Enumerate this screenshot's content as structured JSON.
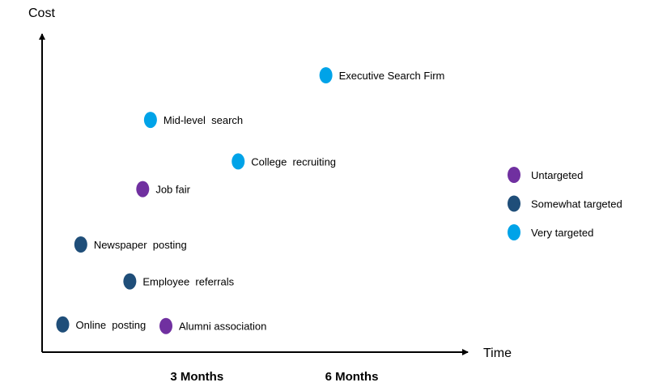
{
  "chart_data": {
    "type": "scatter",
    "title": "",
    "xlabel": "Time",
    "ylabel": "Cost",
    "x_ticks": [
      {
        "label": "3 Months",
        "value": 3
      },
      {
        "label": "6 Months",
        "value": 6
      }
    ],
    "xlim": [
      0,
      8
    ],
    "ylim": [
      0,
      10
    ],
    "grid": false,
    "legend_position": "right",
    "categories": [
      {
        "key": "untargeted",
        "name": "Untargeted",
        "color": "#7030a0"
      },
      {
        "key": "somewhat",
        "name": "Somewhat targeted",
        "color": "#1f4e79"
      },
      {
        "key": "very",
        "name": "Very targeted",
        "color": "#00a3e8"
      }
    ],
    "points": [
      {
        "label": "Executive Search Firm",
        "x": 5.5,
        "y": 9.0,
        "category": "very"
      },
      {
        "label": "Mid-level  search",
        "x": 2.1,
        "y": 7.55,
        "category": "very"
      },
      {
        "label": "College  recruiting",
        "x": 3.8,
        "y": 6.2,
        "category": "very"
      },
      {
        "label": "Job fair",
        "x": 1.95,
        "y": 5.3,
        "category": "untargeted"
      },
      {
        "label": "Newspaper  posting",
        "x": 0.75,
        "y": 3.5,
        "category": "somewhat"
      },
      {
        "label": "Employee  referrals",
        "x": 1.7,
        "y": 2.3,
        "category": "somewhat"
      },
      {
        "label": "Online  posting",
        "x": 0.4,
        "y": 0.9,
        "category": "somewhat"
      },
      {
        "label": "Alumni association",
        "x": 2.4,
        "y": 0.85,
        "category": "untargeted"
      }
    ]
  }
}
